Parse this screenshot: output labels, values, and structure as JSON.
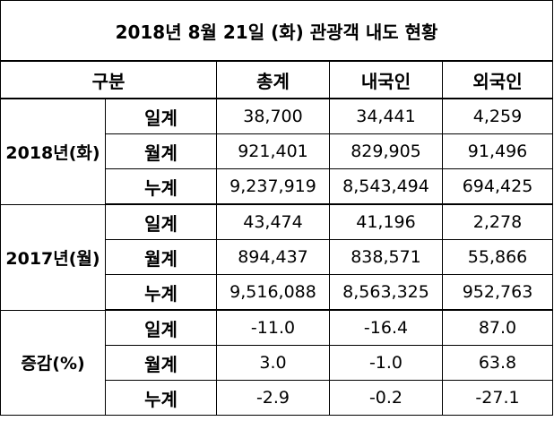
{
  "title": "2018년 8월 21일 (화) 관광객 내도 현황",
  "header": {
    "category": "구분",
    "col_total": "총계",
    "col_domestic": "내국인",
    "col_foreign": "외국인"
  },
  "groups": [
    {
      "label": "2018년(화)",
      "rows": [
        {
          "label": "일계",
          "total": "38,700",
          "domestic": "34,441",
          "foreign": "4,259"
        },
        {
          "label": "월계",
          "total": "921,401",
          "domestic": "829,905",
          "foreign": "91,496"
        },
        {
          "label": "누계",
          "total": "9,237,919",
          "domestic": "8,543,494",
          "foreign": "694,425"
        }
      ]
    },
    {
      "label": "2017년(월)",
      "rows": [
        {
          "label": "일계",
          "total": "43,474",
          "domestic": "41,196",
          "foreign": "2,278"
        },
        {
          "label": "월계",
          "total": "894,437",
          "domestic": "838,571",
          "foreign": "55,866"
        },
        {
          "label": "누계",
          "total": "9,516,088",
          "domestic": "8,563,325",
          "foreign": "952,763"
        }
      ]
    },
    {
      "label": "증감(%)",
      "rows": [
        {
          "label": "일계",
          "total": "-11.0",
          "domestic": "-16.4",
          "foreign": "87.0"
        },
        {
          "label": "월계",
          "total": "3.0",
          "domestic": "-1.0",
          "foreign": "63.8"
        },
        {
          "label": "누계",
          "total": "-2.9",
          "domestic": "-0.2",
          "foreign": "-27.1"
        }
      ]
    }
  ]
}
